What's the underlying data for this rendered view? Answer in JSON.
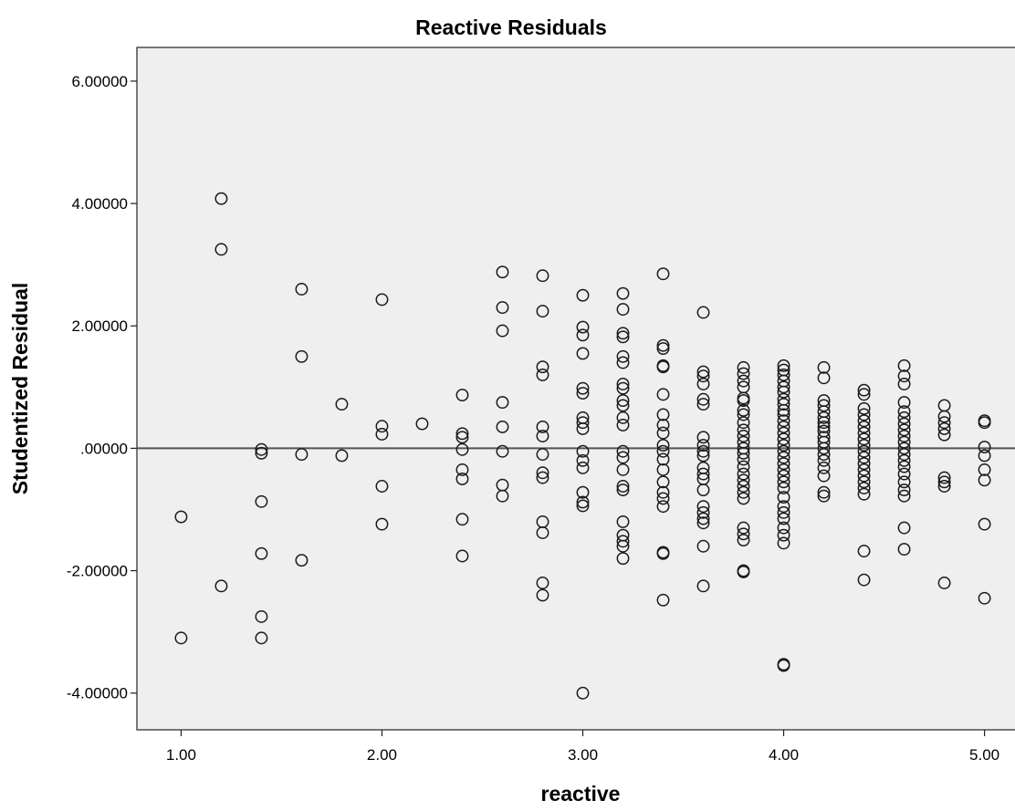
{
  "chart_data": {
    "type": "scatter",
    "title": "Reactive Residuals",
    "xlabel": "reactive",
    "ylabel": "Studentized Residual",
    "xlim": [
      0.78,
      5.17
    ],
    "ylim": [
      -4.6,
      6.55
    ],
    "x_ticks": [
      {
        "value": 1,
        "label": "1.00"
      },
      {
        "value": 2,
        "label": "2.00"
      },
      {
        "value": 3,
        "label": "3.00"
      },
      {
        "value": 4,
        "label": "4.00"
      },
      {
        "value": 5,
        "label": "5.00"
      }
    ],
    "y_ticks": [
      {
        "value": 6,
        "label": "6.00000"
      },
      {
        "value": 4,
        "label": "4.00000"
      },
      {
        "value": 2,
        "label": "2.00000"
      },
      {
        "value": 0,
        "label": ".00000"
      },
      {
        "value": -2,
        "label": "-2.00000"
      },
      {
        "value": -4,
        "label": "-4.00000"
      }
    ],
    "reference_line_y": 0,
    "grid": false,
    "colors": {
      "plot_background": "#efefef",
      "marker_stroke": "#1a1a1a",
      "reference_line": "#555555"
    },
    "points": [
      {
        "x": 1.0,
        "y": -1.12
      },
      {
        "x": 1.0,
        "y": -3.1
      },
      {
        "x": 1.2,
        "y": 4.08
      },
      {
        "x": 1.2,
        "y": 3.25
      },
      {
        "x": 1.2,
        "y": -2.25
      },
      {
        "x": 1.4,
        "y": -0.02
      },
      {
        "x": 1.4,
        "y": -0.08
      },
      {
        "x": 1.4,
        "y": -0.87
      },
      {
        "x": 1.4,
        "y": -1.72
      },
      {
        "x": 1.4,
        "y": -2.75
      },
      {
        "x": 1.4,
        "y": -3.1
      },
      {
        "x": 1.6,
        "y": 2.6
      },
      {
        "x": 1.6,
        "y": 1.5
      },
      {
        "x": 1.6,
        "y": -0.1
      },
      {
        "x": 1.6,
        "y": -1.83
      },
      {
        "x": 1.8,
        "y": 0.72
      },
      {
        "x": 1.8,
        "y": -0.12
      },
      {
        "x": 2.0,
        "y": 2.43
      },
      {
        "x": 2.0,
        "y": 0.36
      },
      {
        "x": 2.0,
        "y": 0.23
      },
      {
        "x": 2.0,
        "y": -0.62
      },
      {
        "x": 2.0,
        "y": -1.24
      },
      {
        "x": 2.2,
        "y": 0.4
      },
      {
        "x": 2.4,
        "y": 0.87
      },
      {
        "x": 2.4,
        "y": 0.24
      },
      {
        "x": 2.4,
        "y": 0.18
      },
      {
        "x": 2.4,
        "y": -0.02
      },
      {
        "x": 2.4,
        "y": -0.35
      },
      {
        "x": 2.4,
        "y": -0.5
      },
      {
        "x": 2.4,
        "y": -1.16
      },
      {
        "x": 2.4,
        "y": -1.76
      },
      {
        "x": 2.6,
        "y": 2.88
      },
      {
        "x": 2.6,
        "y": 2.3
      },
      {
        "x": 2.6,
        "y": 1.92
      },
      {
        "x": 2.6,
        "y": 0.75
      },
      {
        "x": 2.6,
        "y": 0.35
      },
      {
        "x": 2.6,
        "y": -0.05
      },
      {
        "x": 2.6,
        "y": -0.6
      },
      {
        "x": 2.6,
        "y": -0.78
      },
      {
        "x": 2.8,
        "y": 2.82
      },
      {
        "x": 2.8,
        "y": 2.24
      },
      {
        "x": 2.8,
        "y": 1.33
      },
      {
        "x": 2.8,
        "y": 1.2
      },
      {
        "x": 2.8,
        "y": 0.35
      },
      {
        "x": 2.8,
        "y": 0.2
      },
      {
        "x": 2.8,
        "y": -0.1
      },
      {
        "x": 2.8,
        "y": -0.4
      },
      {
        "x": 2.8,
        "y": -0.48
      },
      {
        "x": 2.8,
        "y": -1.2
      },
      {
        "x": 2.8,
        "y": -1.38
      },
      {
        "x": 2.8,
        "y": -2.2
      },
      {
        "x": 2.8,
        "y": -2.4
      },
      {
        "x": 3.0,
        "y": 2.5
      },
      {
        "x": 3.0,
        "y": 1.98
      },
      {
        "x": 3.0,
        "y": 1.85
      },
      {
        "x": 3.0,
        "y": 1.55
      },
      {
        "x": 3.0,
        "y": 0.98
      },
      {
        "x": 3.0,
        "y": 0.9
      },
      {
        "x": 3.0,
        "y": 0.5
      },
      {
        "x": 3.0,
        "y": 0.42
      },
      {
        "x": 3.0,
        "y": 0.32
      },
      {
        "x": 3.0,
        "y": -0.05
      },
      {
        "x": 3.0,
        "y": -0.2
      },
      {
        "x": 3.0,
        "y": -0.32
      },
      {
        "x": 3.0,
        "y": -0.72
      },
      {
        "x": 3.0,
        "y": -0.88
      },
      {
        "x": 3.0,
        "y": -0.94
      },
      {
        "x": 3.0,
        "y": -4.0
      },
      {
        "x": 3.2,
        "y": 2.53
      },
      {
        "x": 3.2,
        "y": 2.27
      },
      {
        "x": 3.2,
        "y": 1.88
      },
      {
        "x": 3.2,
        "y": 1.82
      },
      {
        "x": 3.2,
        "y": 1.5
      },
      {
        "x": 3.2,
        "y": 1.4
      },
      {
        "x": 3.2,
        "y": 1.05
      },
      {
        "x": 3.2,
        "y": 0.98
      },
      {
        "x": 3.2,
        "y": 0.78
      },
      {
        "x": 3.2,
        "y": 0.7
      },
      {
        "x": 3.2,
        "y": 0.5
      },
      {
        "x": 3.2,
        "y": 0.38
      },
      {
        "x": 3.2,
        "y": -0.05
      },
      {
        "x": 3.2,
        "y": -0.15
      },
      {
        "x": 3.2,
        "y": -0.35
      },
      {
        "x": 3.2,
        "y": -0.62
      },
      {
        "x": 3.2,
        "y": -0.68
      },
      {
        "x": 3.2,
        "y": -1.2
      },
      {
        "x": 3.2,
        "y": -1.42
      },
      {
        "x": 3.2,
        "y": -1.52
      },
      {
        "x": 3.2,
        "y": -1.6
      },
      {
        "x": 3.2,
        "y": -1.8
      },
      {
        "x": 3.4,
        "y": 2.85
      },
      {
        "x": 3.4,
        "y": 1.68
      },
      {
        "x": 3.4,
        "y": 1.63
      },
      {
        "x": 3.4,
        "y": 1.35
      },
      {
        "x": 3.4,
        "y": 1.33
      },
      {
        "x": 3.4,
        "y": 0.88
      },
      {
        "x": 3.4,
        "y": 0.55
      },
      {
        "x": 3.4,
        "y": 0.38
      },
      {
        "x": 3.4,
        "y": 0.25
      },
      {
        "x": 3.4,
        "y": 0.05
      },
      {
        "x": 3.4,
        "y": -0.05
      },
      {
        "x": 3.4,
        "y": -0.18
      },
      {
        "x": 3.4,
        "y": -0.35
      },
      {
        "x": 3.4,
        "y": -0.55
      },
      {
        "x": 3.4,
        "y": -0.72
      },
      {
        "x": 3.4,
        "y": -0.82
      },
      {
        "x": 3.4,
        "y": -0.95
      },
      {
        "x": 3.4,
        "y": -1.7
      },
      {
        "x": 3.4,
        "y": -1.72
      },
      {
        "x": 3.4,
        "y": -2.48
      },
      {
        "x": 3.6,
        "y": 2.22
      },
      {
        "x": 3.6,
        "y": 1.25
      },
      {
        "x": 3.6,
        "y": 1.18
      },
      {
        "x": 3.6,
        "y": 1.05
      },
      {
        "x": 3.6,
        "y": 0.8
      },
      {
        "x": 3.6,
        "y": 0.72
      },
      {
        "x": 3.6,
        "y": 0.18
      },
      {
        "x": 3.6,
        "y": 0.05
      },
      {
        "x": 3.6,
        "y": -0.05
      },
      {
        "x": 3.6,
        "y": -0.12
      },
      {
        "x": 3.6,
        "y": -0.32
      },
      {
        "x": 3.6,
        "y": -0.42
      },
      {
        "x": 3.6,
        "y": -0.5
      },
      {
        "x": 3.6,
        "y": -0.68
      },
      {
        "x": 3.6,
        "y": -0.95
      },
      {
        "x": 3.6,
        "y": -1.05
      },
      {
        "x": 3.6,
        "y": -1.15
      },
      {
        "x": 3.6,
        "y": -1.22
      },
      {
        "x": 3.6,
        "y": -1.6
      },
      {
        "x": 3.6,
        "y": -2.25
      },
      {
        "x": 3.8,
        "y": 1.32
      },
      {
        "x": 3.8,
        "y": 1.22
      },
      {
        "x": 3.8,
        "y": 1.1
      },
      {
        "x": 3.8,
        "y": 1.0
      },
      {
        "x": 3.8,
        "y": 0.82
      },
      {
        "x": 3.8,
        "y": 0.78
      },
      {
        "x": 3.8,
        "y": 0.62
      },
      {
        "x": 3.8,
        "y": 0.55
      },
      {
        "x": 3.8,
        "y": 0.42
      },
      {
        "x": 3.8,
        "y": 0.3
      },
      {
        "x": 3.8,
        "y": 0.2
      },
      {
        "x": 3.8,
        "y": 0.1
      },
      {
        "x": 3.8,
        "y": 0.0
      },
      {
        "x": 3.8,
        "y": -0.08
      },
      {
        "x": 3.8,
        "y": -0.18
      },
      {
        "x": 3.8,
        "y": -0.3
      },
      {
        "x": 3.8,
        "y": -0.42
      },
      {
        "x": 3.8,
        "y": -0.52
      },
      {
        "x": 3.8,
        "y": -0.62
      },
      {
        "x": 3.8,
        "y": -0.72
      },
      {
        "x": 3.8,
        "y": -0.82
      },
      {
        "x": 3.8,
        "y": -1.3
      },
      {
        "x": 3.8,
        "y": -1.4
      },
      {
        "x": 3.8,
        "y": -1.5
      },
      {
        "x": 3.8,
        "y": -2.0
      },
      {
        "x": 3.8,
        "y": -2.02
      },
      {
        "x": 4.0,
        "y": 1.35
      },
      {
        "x": 4.0,
        "y": 1.28
      },
      {
        "x": 4.0,
        "y": 1.2
      },
      {
        "x": 4.0,
        "y": 1.1
      },
      {
        "x": 4.0,
        "y": 1.0
      },
      {
        "x": 4.0,
        "y": 0.92
      },
      {
        "x": 4.0,
        "y": 0.8
      },
      {
        "x": 4.0,
        "y": 0.72
      },
      {
        "x": 4.0,
        "y": 0.62
      },
      {
        "x": 4.0,
        "y": 0.55
      },
      {
        "x": 4.0,
        "y": 0.45
      },
      {
        "x": 4.0,
        "y": 0.35
      },
      {
        "x": 4.0,
        "y": 0.25
      },
      {
        "x": 4.0,
        "y": 0.15
      },
      {
        "x": 4.0,
        "y": 0.05
      },
      {
        "x": 4.0,
        "y": -0.05
      },
      {
        "x": 4.0,
        "y": -0.15
      },
      {
        "x": 4.0,
        "y": -0.25
      },
      {
        "x": 4.0,
        "y": -0.35
      },
      {
        "x": 4.0,
        "y": -0.45
      },
      {
        "x": 4.0,
        "y": -0.55
      },
      {
        "x": 4.0,
        "y": -0.65
      },
      {
        "x": 4.0,
        "y": -0.8
      },
      {
        "x": 4.0,
        "y": -0.95
      },
      {
        "x": 4.0,
        "y": -1.05
      },
      {
        "x": 4.0,
        "y": -1.15
      },
      {
        "x": 4.0,
        "y": -1.3
      },
      {
        "x": 4.0,
        "y": -1.42
      },
      {
        "x": 4.0,
        "y": -1.55
      },
      {
        "x": 4.0,
        "y": -3.53
      },
      {
        "x": 4.0,
        "y": -3.55
      },
      {
        "x": 4.2,
        "y": 1.32
      },
      {
        "x": 4.2,
        "y": 1.15
      },
      {
        "x": 4.2,
        "y": 0.78
      },
      {
        "x": 4.2,
        "y": 0.7
      },
      {
        "x": 4.2,
        "y": 0.6
      },
      {
        "x": 4.2,
        "y": 0.5
      },
      {
        "x": 4.2,
        "y": 0.42
      },
      {
        "x": 4.2,
        "y": 0.35
      },
      {
        "x": 4.2,
        "y": 0.28
      },
      {
        "x": 4.2,
        "y": 0.18
      },
      {
        "x": 4.2,
        "y": 0.1
      },
      {
        "x": 4.2,
        "y": 0.0
      },
      {
        "x": 4.2,
        "y": -0.1
      },
      {
        "x": 4.2,
        "y": -0.2
      },
      {
        "x": 4.2,
        "y": -0.32
      },
      {
        "x": 4.2,
        "y": -0.45
      },
      {
        "x": 4.2,
        "y": -0.72
      },
      {
        "x": 4.2,
        "y": -0.78
      },
      {
        "x": 4.4,
        "y": 0.95
      },
      {
        "x": 4.4,
        "y": 0.88
      },
      {
        "x": 4.4,
        "y": 0.65
      },
      {
        "x": 4.4,
        "y": 0.55
      },
      {
        "x": 4.4,
        "y": 0.45
      },
      {
        "x": 4.4,
        "y": 0.35
      },
      {
        "x": 4.4,
        "y": 0.25
      },
      {
        "x": 4.4,
        "y": 0.15
      },
      {
        "x": 4.4,
        "y": 0.05
      },
      {
        "x": 4.4,
        "y": -0.05
      },
      {
        "x": 4.4,
        "y": -0.15
      },
      {
        "x": 4.4,
        "y": -0.25
      },
      {
        "x": 4.4,
        "y": -0.35
      },
      {
        "x": 4.4,
        "y": -0.45
      },
      {
        "x": 4.4,
        "y": -0.55
      },
      {
        "x": 4.4,
        "y": -0.65
      },
      {
        "x": 4.4,
        "y": -0.75
      },
      {
        "x": 4.4,
        "y": -1.68
      },
      {
        "x": 4.4,
        "y": -2.15
      },
      {
        "x": 4.6,
        "y": 1.35
      },
      {
        "x": 4.6,
        "y": 1.18
      },
      {
        "x": 4.6,
        "y": 1.05
      },
      {
        "x": 4.6,
        "y": 0.75
      },
      {
        "x": 4.6,
        "y": 0.6
      },
      {
        "x": 4.6,
        "y": 0.5
      },
      {
        "x": 4.6,
        "y": 0.4
      },
      {
        "x": 4.6,
        "y": 0.3
      },
      {
        "x": 4.6,
        "y": 0.2
      },
      {
        "x": 4.6,
        "y": 0.1
      },
      {
        "x": 4.6,
        "y": 0.0
      },
      {
        "x": 4.6,
        "y": -0.1
      },
      {
        "x": 4.6,
        "y": -0.2
      },
      {
        "x": 4.6,
        "y": -0.3
      },
      {
        "x": 4.6,
        "y": -0.42
      },
      {
        "x": 4.6,
        "y": -0.55
      },
      {
        "x": 4.6,
        "y": -0.68
      },
      {
        "x": 4.6,
        "y": -0.78
      },
      {
        "x": 4.6,
        "y": -1.3
      },
      {
        "x": 4.6,
        "y": -1.65
      },
      {
        "x": 4.8,
        "y": 0.7
      },
      {
        "x": 4.8,
        "y": 0.52
      },
      {
        "x": 4.8,
        "y": 0.42
      },
      {
        "x": 4.8,
        "y": 0.32
      },
      {
        "x": 4.8,
        "y": 0.22
      },
      {
        "x": 4.8,
        "y": -0.48
      },
      {
        "x": 4.8,
        "y": -0.55
      },
      {
        "x": 4.8,
        "y": -0.62
      },
      {
        "x": 4.8,
        "y": -2.2
      },
      {
        "x": 5.0,
        "y": 0.45
      },
      {
        "x": 5.0,
        "y": 0.42
      },
      {
        "x": 5.0,
        "y": 0.02
      },
      {
        "x": 5.0,
        "y": -0.12
      },
      {
        "x": 5.0,
        "y": -0.35
      },
      {
        "x": 5.0,
        "y": -0.52
      },
      {
        "x": 5.0,
        "y": -1.24
      },
      {
        "x": 5.0,
        "y": -2.45
      }
    ]
  }
}
